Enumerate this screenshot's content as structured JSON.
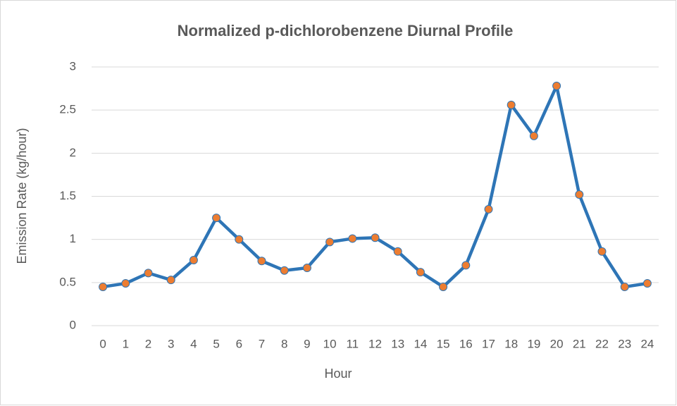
{
  "chart_data": {
    "type": "line",
    "title": "Normalized p-dichlorobenzene Diurnal Profile",
    "x_label": "Hour",
    "y_label": "Emission Rate (kg/hour)",
    "categories": [
      "0",
      "1",
      "2",
      "3",
      "4",
      "5",
      "6",
      "7",
      "8",
      "9",
      "10",
      "11",
      "12",
      "13",
      "14",
      "15",
      "16",
      "17",
      "18",
      "19",
      "20",
      "21",
      "22",
      "23",
      "24"
    ],
    "series": [
      {
        "name": "Emission Rate",
        "color": "#2e75b6",
        "marker_color": "#ed7d31",
        "values": [
          0.45,
          0.49,
          0.61,
          0.53,
          0.76,
          1.25,
          1.0,
          0.75,
          0.64,
          0.67,
          0.97,
          1.01,
          1.02,
          0.86,
          0.62,
          0.45,
          0.7,
          1.35,
          2.56,
          2.2,
          2.78,
          1.52,
          0.86,
          0.45,
          0.49
        ]
      }
    ],
    "ylim": [
      0,
      3
    ],
    "yticks": [
      0,
      0.5,
      1,
      1.5,
      2,
      2.5,
      3
    ],
    "grid": true,
    "legend": false
  }
}
